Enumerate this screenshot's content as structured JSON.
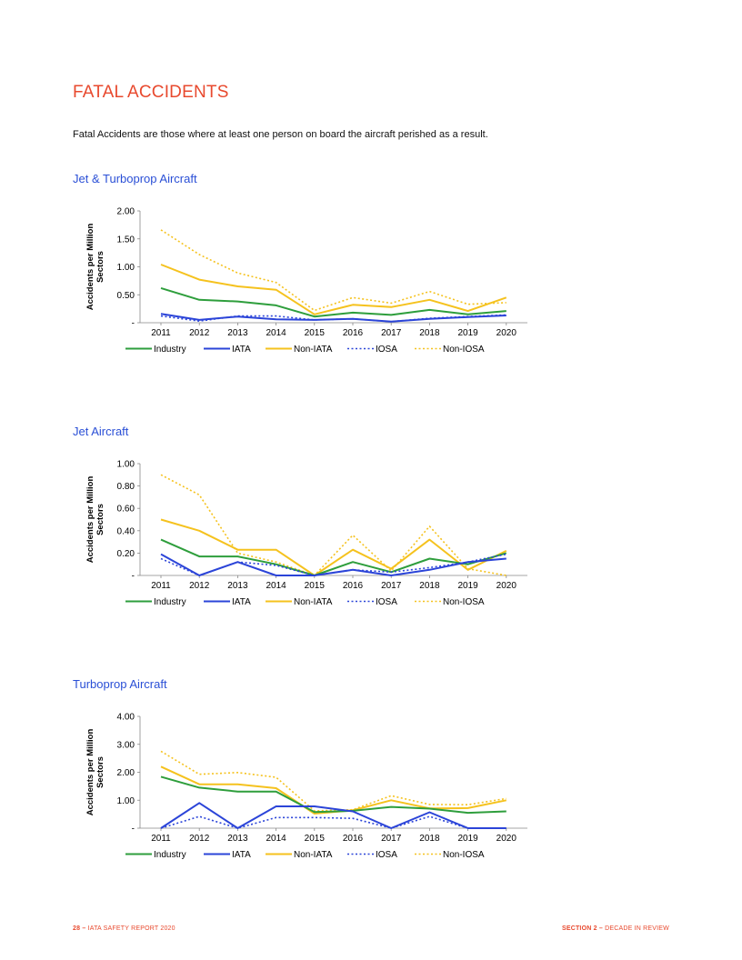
{
  "page": {
    "heading": "FATAL ACCIDENTS",
    "intro": "Fatal Accidents are those where at least one person on board the aircraft perished as a result."
  },
  "legend_items": [
    {
      "name": "Industry",
      "color": "#2e9e3c",
      "dashed": false
    },
    {
      "name": "IATA",
      "color": "#2b44d8",
      "dashed": false
    },
    {
      "name": "Non-IATA",
      "color": "#f5c21e",
      "dashed": false
    },
    {
      "name": "IOSA",
      "color": "#2b44d8",
      "dashed": true
    },
    {
      "name": "Non-IOSA",
      "color": "#f5c21e",
      "dashed": true
    }
  ],
  "chart_data": [
    {
      "type": "line",
      "title": "Jet & Turboprop Aircraft",
      "ylabel": "Accidents per Million Sectors",
      "xlabel": "",
      "x": [
        "2011",
        "2012",
        "2013",
        "2014",
        "2015",
        "2016",
        "2017",
        "2018",
        "2019",
        "2020"
      ],
      "ylim": [
        0,
        2.0
      ],
      "yticks": [
        "-",
        "0.50",
        "1.00",
        "1.50",
        "2.00"
      ],
      "series": [
        {
          "name": "Industry",
          "values": [
            0.62,
            0.41,
            0.38,
            0.31,
            0.11,
            0.18,
            0.14,
            0.23,
            0.15,
            0.21
          ]
        },
        {
          "name": "IATA",
          "values": [
            0.16,
            0.05,
            0.11,
            0.06,
            0.05,
            0.07,
            0.02,
            0.07,
            0.1,
            0.13
          ]
        },
        {
          "name": "Non-IATA",
          "values": [
            1.04,
            0.77,
            0.65,
            0.59,
            0.15,
            0.32,
            0.28,
            0.41,
            0.21,
            0.45
          ]
        },
        {
          "name": "IOSA",
          "values": [
            0.12,
            0.03,
            0.12,
            0.12,
            0.05,
            0.07,
            0.02,
            0.08,
            0.11,
            0.14
          ]
        },
        {
          "name": "Non-IOSA",
          "values": [
            1.66,
            1.22,
            0.89,
            0.72,
            0.22,
            0.45,
            0.35,
            0.56,
            0.33,
            0.36
          ]
        }
      ]
    },
    {
      "type": "line",
      "title": "Jet Aircraft",
      "ylabel": "Accidents per Million Sectors",
      "xlabel": "",
      "x": [
        "2011",
        "2012",
        "2013",
        "2014",
        "2015",
        "2016",
        "2017",
        "2018",
        "2019",
        "2020"
      ],
      "ylim": [
        0,
        1.0
      ],
      "yticks": [
        "-",
        "0.20",
        "0.40",
        "0.60",
        "0.80",
        "1.00"
      ],
      "series": [
        {
          "name": "Industry",
          "values": [
            0.32,
            0.17,
            0.17,
            0.1,
            0.0,
            0.12,
            0.03,
            0.15,
            0.1,
            0.2
          ]
        },
        {
          "name": "IATA",
          "values": [
            0.19,
            0.0,
            0.12,
            0.0,
            0.0,
            0.05,
            0.0,
            0.05,
            0.12,
            0.15
          ]
        },
        {
          "name": "Non-IATA",
          "values": [
            0.5,
            0.4,
            0.23,
            0.23,
            0.0,
            0.23,
            0.06,
            0.32,
            0.05,
            0.22
          ]
        },
        {
          "name": "IOSA",
          "values": [
            0.15,
            0.0,
            0.12,
            0.09,
            0.0,
            0.05,
            0.03,
            0.07,
            0.12,
            0.19
          ]
        },
        {
          "name": "Non-IOSA",
          "values": [
            0.9,
            0.72,
            0.2,
            0.12,
            0.0,
            0.36,
            0.04,
            0.44,
            0.06,
            0.0
          ]
        }
      ]
    },
    {
      "type": "line",
      "title": "Turboprop Aircraft",
      "ylabel": "Accidents per Million Sectors",
      "xlabel": "",
      "x": [
        "2011",
        "2012",
        "2013",
        "2014",
        "2015",
        "2016",
        "2017",
        "2018",
        "2019",
        "2020"
      ],
      "ylim": [
        0,
        4.0
      ],
      "yticks": [
        "-",
        "1.00",
        "2.00",
        "3.00",
        "4.00"
      ],
      "series": [
        {
          "name": "Industry",
          "values": [
            1.84,
            1.45,
            1.31,
            1.31,
            0.58,
            0.62,
            0.76,
            0.7,
            0.55,
            0.6
          ]
        },
        {
          "name": "IATA",
          "values": [
            0.0,
            0.9,
            0.0,
            0.78,
            0.78,
            0.6,
            0.0,
            0.57,
            0.0,
            0.0
          ]
        },
        {
          "name": "Non-IATA",
          "values": [
            2.2,
            1.57,
            1.57,
            1.43,
            0.52,
            0.64,
            1.0,
            0.71,
            0.72,
            1.0
          ]
        },
        {
          "name": "IOSA",
          "values": [
            0.0,
            0.42,
            0.0,
            0.38,
            0.38,
            0.35,
            0.0,
            0.42,
            0.0,
            0.0
          ]
        },
        {
          "name": "Non-IOSA",
          "values": [
            2.75,
            1.93,
            1.99,
            1.82,
            0.62,
            0.66,
            1.16,
            0.85,
            0.84,
            1.06
          ]
        }
      ]
    }
  ],
  "footer": {
    "left_num": "28",
    "left_sep": " – ",
    "left_text": "IATA SAFETY REPORT 2020",
    "right_section": "SECTION 2",
    "right_sep": " – ",
    "right_text": "DECADE IN REVIEW"
  }
}
